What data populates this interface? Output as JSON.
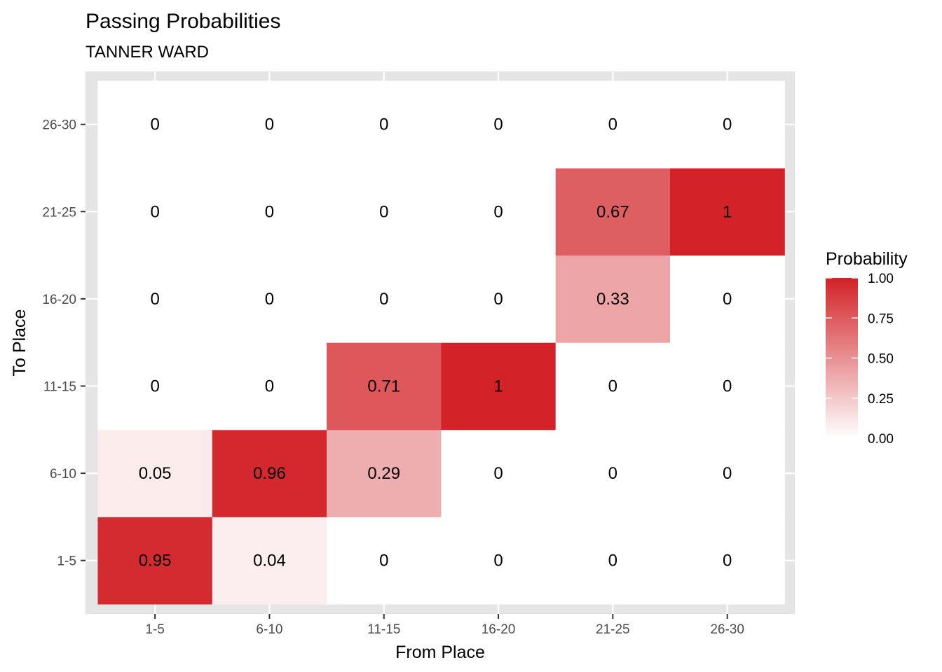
{
  "chart_data": {
    "type": "heatmap",
    "title": "Passing Probabilities",
    "subtitle": "TANNER WARD",
    "xlabel": "From Place",
    "ylabel": "To Place",
    "x_categories": [
      "1-5",
      "6-10",
      "11-15",
      "16-20",
      "21-25",
      "26-30"
    ],
    "y_categories": [
      "1-5",
      "6-10",
      "11-15",
      "16-20",
      "21-25",
      "26-30"
    ],
    "cells": [
      {
        "x": "1-5",
        "y": "1-5",
        "value": 0.95,
        "label": "0.95"
      },
      {
        "x": "1-5",
        "y": "6-10",
        "value": 0.05,
        "label": "0.05"
      },
      {
        "x": "1-5",
        "y": "11-15",
        "value": 0,
        "label": "0"
      },
      {
        "x": "1-5",
        "y": "16-20",
        "value": 0,
        "label": "0"
      },
      {
        "x": "1-5",
        "y": "21-25",
        "value": 0,
        "label": "0"
      },
      {
        "x": "1-5",
        "y": "26-30",
        "value": 0,
        "label": "0"
      },
      {
        "x": "6-10",
        "y": "1-5",
        "value": 0.04,
        "label": "0.04"
      },
      {
        "x": "6-10",
        "y": "6-10",
        "value": 0.96,
        "label": "0.96"
      },
      {
        "x": "6-10",
        "y": "11-15",
        "value": 0,
        "label": "0"
      },
      {
        "x": "6-10",
        "y": "16-20",
        "value": 0,
        "label": "0"
      },
      {
        "x": "6-10",
        "y": "21-25",
        "value": 0,
        "label": "0"
      },
      {
        "x": "6-10",
        "y": "26-30",
        "value": 0,
        "label": "0"
      },
      {
        "x": "11-15",
        "y": "1-5",
        "value": 0,
        "label": "0"
      },
      {
        "x": "11-15",
        "y": "6-10",
        "value": 0.29,
        "label": "0.29"
      },
      {
        "x": "11-15",
        "y": "11-15",
        "value": 0.71,
        "label": "0.71"
      },
      {
        "x": "11-15",
        "y": "16-20",
        "value": 0,
        "label": "0"
      },
      {
        "x": "11-15",
        "y": "21-25",
        "value": 0,
        "label": "0"
      },
      {
        "x": "11-15",
        "y": "26-30",
        "value": 0,
        "label": "0"
      },
      {
        "x": "16-20",
        "y": "1-5",
        "value": 0,
        "label": "0"
      },
      {
        "x": "16-20",
        "y": "6-10",
        "value": 0,
        "label": "0"
      },
      {
        "x": "16-20",
        "y": "11-15",
        "value": 1,
        "label": "1"
      },
      {
        "x": "16-20",
        "y": "16-20",
        "value": 0,
        "label": "0"
      },
      {
        "x": "16-20",
        "y": "21-25",
        "value": 0,
        "label": "0"
      },
      {
        "x": "16-20",
        "y": "26-30",
        "value": 0,
        "label": "0"
      },
      {
        "x": "21-25",
        "y": "1-5",
        "value": 0,
        "label": "0"
      },
      {
        "x": "21-25",
        "y": "6-10",
        "value": 0,
        "label": "0"
      },
      {
        "x": "21-25",
        "y": "11-15",
        "value": 0,
        "label": "0"
      },
      {
        "x": "21-25",
        "y": "16-20",
        "value": 0.33,
        "label": "0.33"
      },
      {
        "x": "21-25",
        "y": "21-25",
        "value": 0.67,
        "label": "0.67"
      },
      {
        "x": "21-25",
        "y": "26-30",
        "value": 0,
        "label": "0"
      },
      {
        "x": "26-30",
        "y": "1-5",
        "value": 0,
        "label": "0"
      },
      {
        "x": "26-30",
        "y": "6-10",
        "value": 0,
        "label": "0"
      },
      {
        "x": "26-30",
        "y": "11-15",
        "value": 0,
        "label": "0"
      },
      {
        "x": "26-30",
        "y": "16-20",
        "value": 0,
        "label": "0"
      },
      {
        "x": "26-30",
        "y": "21-25",
        "value": 1,
        "label": "1"
      },
      {
        "x": "26-30",
        "y": "26-30",
        "value": 0,
        "label": "0"
      }
    ],
    "legend": {
      "title": "Probability",
      "placement": "right",
      "ticks": [
        "0.00",
        "0.25",
        "0.50",
        "0.75",
        "1.00"
      ],
      "range": [
        0,
        1
      ]
    },
    "colors": {
      "low": "#ffffff",
      "high": "#d22227",
      "panel_background": "#e5e5e5",
      "grid": "#ffffff"
    },
    "grid": true
  }
}
